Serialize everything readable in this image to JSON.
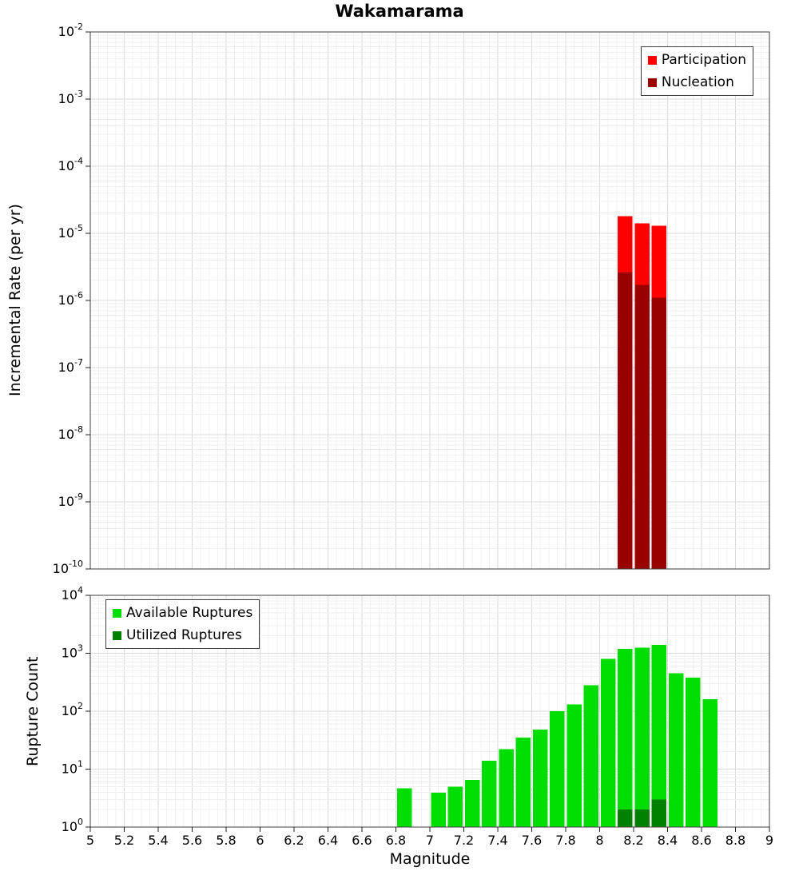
{
  "title": "Wakamarama",
  "x_axis": {
    "label": "Magnitude",
    "range": [
      5,
      9
    ],
    "tick_values": [
      5,
      5.2,
      5.4,
      5.6,
      5.8,
      6,
      6.2,
      6.4,
      6.6,
      6.8,
      7,
      7.2,
      7.4,
      7.6,
      7.8,
      8,
      8.2,
      8.4,
      8.6,
      8.8,
      9
    ],
    "tick_labels": [
      "5",
      "5.2",
      "5.4",
      "5.6",
      "5.8",
      "6",
      "6.2",
      "6.4",
      "6.6",
      "6.8",
      "7",
      "7.2",
      "7.4",
      "7.6",
      "7.8",
      "8",
      "8.2",
      "8.4",
      "8.6",
      "8.8",
      "9"
    ]
  },
  "chart_data": [
    {
      "id": "incremental-rate",
      "type": "bar",
      "title": "Wakamarama",
      "ylabel": "Incremental Rate (per yr)",
      "yscale": "log",
      "ylim": [
        1e-10,
        0.01
      ],
      "xlim": [
        5,
        9
      ],
      "y_tick_exponents": [
        -2,
        -3,
        -4,
        -5,
        -6,
        -7,
        -8,
        -9,
        -10
      ],
      "bar_width": 0.1,
      "grid": true,
      "legend_position": "top-right",
      "legend": [
        {
          "label": "Participation",
          "color": "#ff0000"
        },
        {
          "label": "Nucleation",
          "color": "#990000"
        }
      ],
      "series": [
        {
          "name": "Participation",
          "color": "#ff0000",
          "x": [
            8.15,
            8.25,
            8.35
          ],
          "values": [
            1.8e-05,
            1.4e-05,
            1.3e-05
          ]
        },
        {
          "name": "Nucleation",
          "color": "#990000",
          "x": [
            8.15,
            8.25,
            8.35
          ],
          "values": [
            2.6e-06,
            1.7e-06,
            1.1e-06
          ]
        }
      ]
    },
    {
      "id": "rupture-count",
      "type": "bar",
      "ylabel": "Rupture Count",
      "yscale": "log",
      "ylim": [
        1,
        10000
      ],
      "xlim": [
        5,
        9
      ],
      "y_tick_exponents": [
        4,
        3,
        2,
        1,
        0
      ],
      "bar_width": 0.1,
      "grid": true,
      "legend_position": "top-left",
      "legend": [
        {
          "label": "Available Ruptures",
          "color": "#00dd00"
        },
        {
          "label": "Utilized Ruptures",
          "color": "#008000"
        }
      ],
      "series": [
        {
          "name": "Available Ruptures",
          "color": "#00dd00",
          "x": [
            6.85,
            7.05,
            7.15,
            7.25,
            7.35,
            7.45,
            7.55,
            7.65,
            7.75,
            7.85,
            7.95,
            8.05,
            8.15,
            8.25,
            8.35,
            8.45,
            8.55,
            8.65
          ],
          "values": [
            4.7,
            3.9,
            5,
            6.5,
            14,
            22,
            35,
            48,
            100,
            130,
            280,
            800,
            1200,
            1250,
            1400,
            450,
            380,
            160
          ]
        },
        {
          "name": "Utilized Ruptures",
          "color": "#008000",
          "x": [
            8.15,
            8.25,
            8.35
          ],
          "values": [
            2,
            2,
            3
          ]
        }
      ]
    }
  ]
}
